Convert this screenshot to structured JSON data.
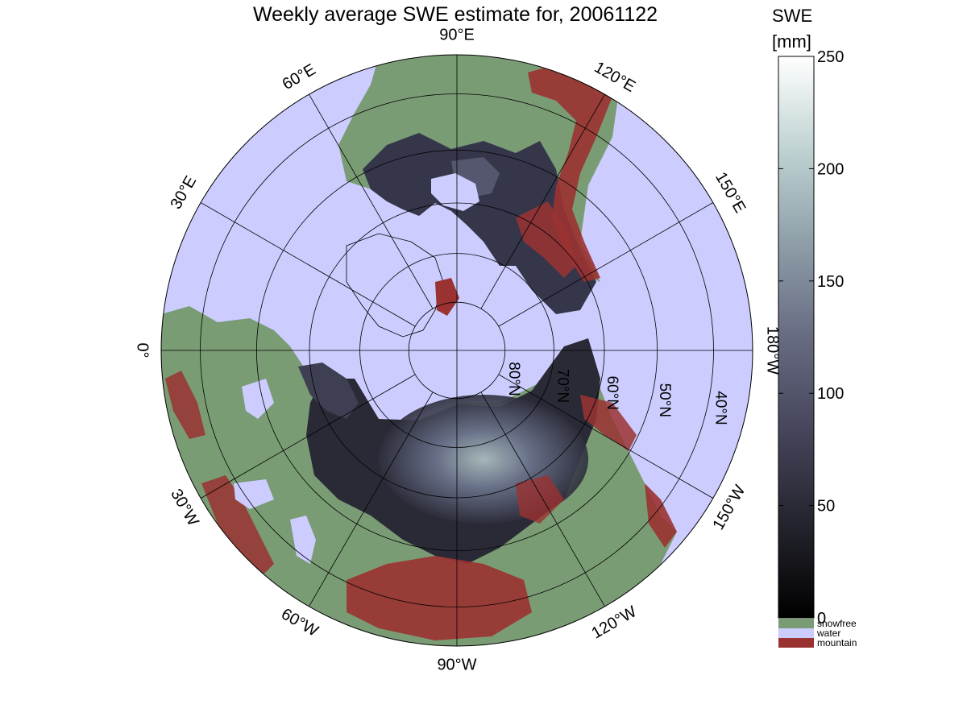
{
  "title": "Weekly average SWE estimate for, 20061122",
  "colorbar": {
    "title_line1": "SWE",
    "title_line2": "[mm]",
    "min": 0,
    "max": 250,
    "ticks": [
      "0",
      "50",
      "100",
      "150",
      "200",
      "250"
    ],
    "gradient": [
      "#000000",
      "#24242e",
      "#45455b",
      "#676b82",
      "#8e9ea8",
      "#bfd2d2",
      "#ffffff"
    ],
    "categories": [
      {
        "label": "snowfree",
        "color": "#7a9c74"
      },
      {
        "label": "water",
        "color": "#ccccff"
      },
      {
        "label": "mountain",
        "color": "#9b3232"
      }
    ]
  },
  "map": {
    "projection": "north polar stereographic",
    "longitude_labels": [
      {
        "text": "90°W",
        "lon": -90
      },
      {
        "text": "120°W",
        "lon": -120
      },
      {
        "text": "150°W",
        "lon": -150
      },
      {
        "text": "180°W",
        "lon": 180
      },
      {
        "text": "150°E",
        "lon": 150
      },
      {
        "text": "120°E",
        "lon": 120
      },
      {
        "text": "90°E",
        "lon": 90
      },
      {
        "text": "60°E",
        "lon": 60
      },
      {
        "text": "30°E",
        "lon": 30
      },
      {
        "text": "0°",
        "lon": 0
      },
      {
        "text": "30°W",
        "lon": -30
      },
      {
        "text": "60°W",
        "lon": -60
      }
    ],
    "latitude_labels": [
      "80°N",
      "70°N",
      "60°N",
      "50°N",
      "40°N"
    ],
    "colors": {
      "water": "#ccccff",
      "snowfree": "#7a9c74",
      "mountain": "#9b3232",
      "snow_low": "#23222b",
      "snow_mid": "#55586f",
      "snow_high": "#a9bcc0",
      "grid": "#000000"
    }
  }
}
